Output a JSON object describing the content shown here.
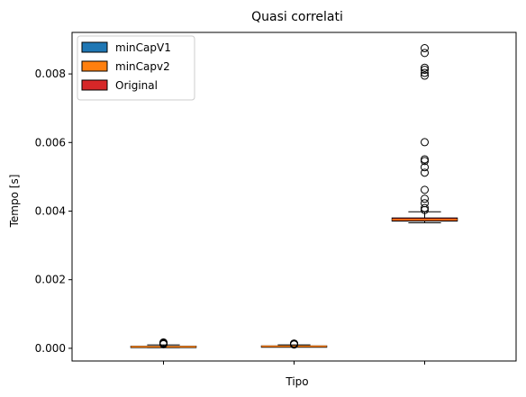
{
  "chart_data": {
    "type": "boxplot",
    "title": "Quasi correlati",
    "xlabel": "Tipo",
    "ylabel": "Tempo [s]",
    "ylim": [
      -0.00037,
      0.00921
    ],
    "yticks": [
      "0.000",
      "0.002",
      "0.004",
      "0.006",
      "0.008"
    ],
    "ytick_values": [
      0,
      0.002,
      0.004,
      0.006,
      0.008
    ],
    "xlim": [
      0.3,
      3.7
    ],
    "xtick_positions": [
      1,
      2,
      3
    ],
    "xtick_labels": [
      "",
      "",
      ""
    ],
    "legend_position": "top-left",
    "series": [
      {
        "name": "minCapV1",
        "color": "#1f77b4",
        "position": 1,
        "whislo": 2e-05,
        "q1": 3e-05,
        "median": 4.5e-05,
        "q3": 6e-05,
        "whishi": 0.0001,
        "fliers": [
          0.00012,
          0.00013,
          0.00014,
          0.00015,
          0.00016,
          0.00017
        ]
      },
      {
        "name": "minCapv2",
        "color": "#ff7f0e",
        "position": 2,
        "whislo": 4e-05,
        "q1": 5e-05,
        "median": 6e-05,
        "q3": 7e-05,
        "whishi": 0.0001,
        "fliers": [
          0.00011,
          0.00012,
          0.00013,
          0.00014
        ]
      },
      {
        "name": "Original",
        "color": "#d62728",
        "position": 3,
        "whislo": 0.00366,
        "q1": 0.00371,
        "median": 0.00375,
        "q3": 0.0038,
        "whishi": 0.00398,
        "fliers": [
          0.00403,
          0.00409,
          0.00423,
          0.00436,
          0.00462,
          0.00512,
          0.00528,
          0.00546,
          0.00551,
          0.00601,
          0.00795,
          0.00803,
          0.00812,
          0.00818,
          0.00861,
          0.00875
        ]
      }
    ],
    "grid": false
  }
}
